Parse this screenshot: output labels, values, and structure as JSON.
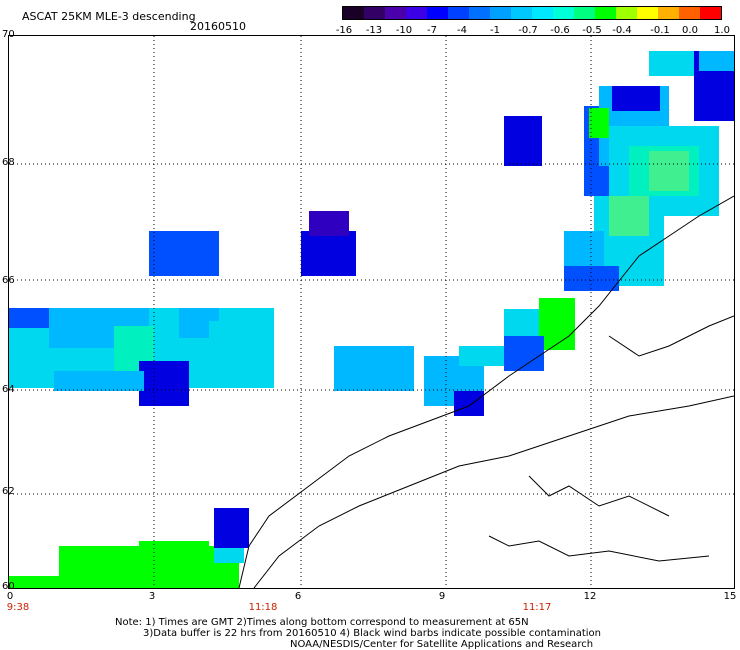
{
  "header": {
    "title": "ASCAT 25KM MLE-3 descending",
    "date": "20160510"
  },
  "colorbar": {
    "colors": [
      "#1a0026",
      "#330066",
      "#4a00aa",
      "#3c00e6",
      "#0000ff",
      "#0040ff",
      "#0070ff",
      "#00a0ff",
      "#00c8ff",
      "#00e8ff",
      "#00ffd8",
      "#00ff80",
      "#00ff00",
      "#a0ff00",
      "#ffff00",
      "#ffb000",
      "#ff6000",
      "#ff0000"
    ],
    "ticks": [
      "-16",
      "-13",
      "-10",
      "-7",
      "-4",
      "-1",
      "-0.7",
      "-0.6",
      "-0.5",
      "-0.4",
      "-0.1",
      "0.0",
      "1.0"
    ]
  },
  "axes": {
    "lat_labels": [
      "70",
      "68",
      "66",
      "64",
      "62",
      "60"
    ],
    "lon_labels": [
      "0",
      "3",
      "6",
      "9",
      "12",
      "15"
    ],
    "time_labels": [
      "9:38",
      "11:18",
      "11:17"
    ]
  },
  "notes": {
    "line1": "Note: 1) Times are GMT 2)Times along bottom correspond to measurement at 65N",
    "line2": "3)Data buffer is 22 hrs from 20160510 4) Black wind barbs indicate possible contamination",
    "line3": "NOAA/NESDIS/Center for Satellite Applications and Research"
  }
}
